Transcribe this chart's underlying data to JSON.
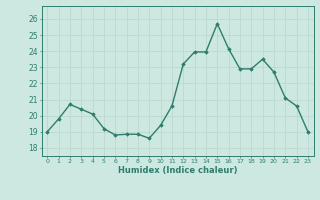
{
  "x": [
    0,
    1,
    2,
    3,
    4,
    5,
    6,
    7,
    8,
    9,
    10,
    11,
    12,
    13,
    14,
    15,
    16,
    17,
    18,
    19,
    20,
    21,
    22,
    23
  ],
  "y": [
    19.0,
    19.8,
    20.7,
    20.4,
    20.1,
    19.2,
    18.8,
    18.85,
    18.85,
    18.6,
    19.4,
    20.6,
    23.2,
    23.95,
    23.95,
    25.7,
    24.15,
    22.9,
    22.9,
    23.5,
    22.7,
    21.1,
    20.6,
    19.0
  ],
  "line_color": "#2e7d6e",
  "marker": "D",
  "marker_size": 1.8,
  "line_width": 1.0,
  "bg_color": "#cce8e0",
  "grid_color_major": "#b8d4cc",
  "grid_color_minor": "#c8e0d8",
  "tick_color": "#2e7d6e",
  "xlabel": "Humidex (Indice chaleur)",
  "xlabel_fontsize": 6.0,
  "ytick_fontsize": 5.5,
  "xtick_fontsize": 4.5,
  "yticks": [
    18,
    19,
    20,
    21,
    22,
    23,
    24,
    25,
    26
  ],
  "ylim": [
    17.5,
    26.8
  ],
  "xlim": [
    -0.5,
    23.5
  ],
  "xtick_labels": [
    "0",
    "1",
    "2",
    "3",
    "4",
    "5",
    "6",
    "7",
    "8",
    "9",
    "10",
    "11",
    "12",
    "13",
    "14",
    "15",
    "16",
    "17",
    "18",
    "19",
    "20",
    "21",
    "22",
    "23"
  ]
}
